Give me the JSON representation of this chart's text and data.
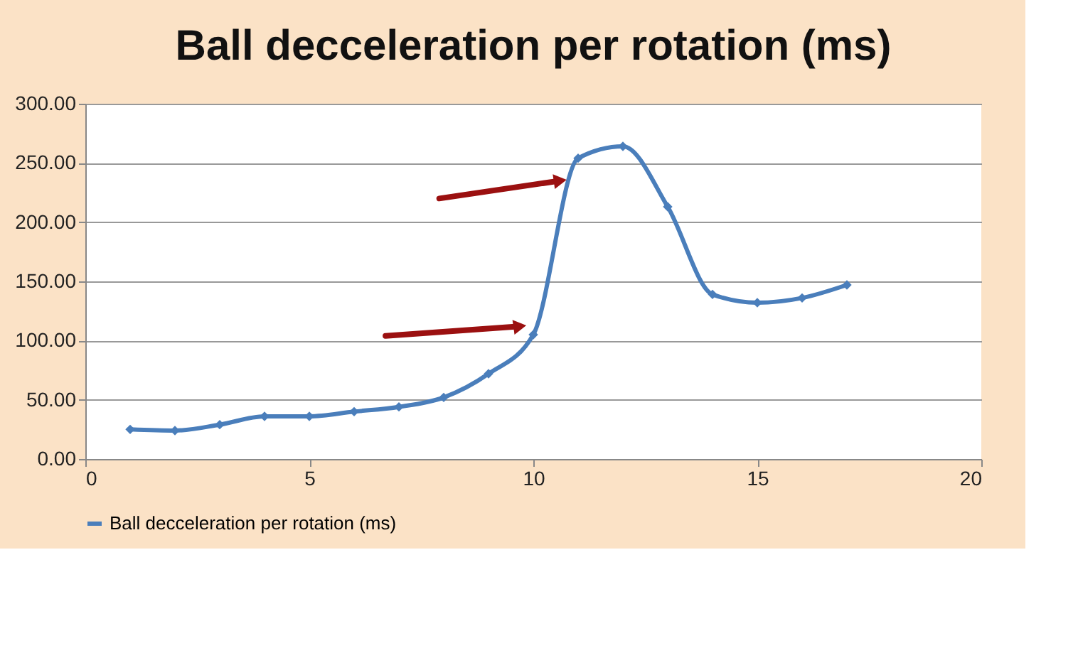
{
  "chart_data": {
    "type": "line",
    "title": "Ball decceleration per rotation (ms)",
    "x": [
      1,
      2,
      3,
      4,
      5,
      6,
      7,
      8,
      9,
      10,
      11,
      12,
      13,
      14,
      15,
      16,
      17
    ],
    "series": [
      {
        "name": "Ball decceleration per rotation (ms)",
        "color": "#4a7ebb",
        "values": [
          25,
          24,
          29,
          36,
          36,
          40,
          44,
          52,
          72,
          105,
          254,
          264,
          213,
          139,
          132,
          136,
          147
        ]
      }
    ],
    "xlim": [
      0,
      20
    ],
    "xticks": [
      0,
      5,
      10,
      15,
      20
    ],
    "ylim": [
      0,
      300
    ],
    "yticks": [
      {
        "value": 0,
        "label": "0.00"
      },
      {
        "value": 50,
        "label": "50.00"
      },
      {
        "value": 100,
        "label": "100.00"
      },
      {
        "value": 150,
        "label": "150.00"
      },
      {
        "value": 200,
        "label": "200.00"
      },
      {
        "value": 250,
        "label": "250.00"
      },
      {
        "value": 300,
        "label": "300.00"
      }
    ],
    "grid": "y",
    "legend": "bottom",
    "marker": "diamond",
    "line_style": "solid"
  }
}
